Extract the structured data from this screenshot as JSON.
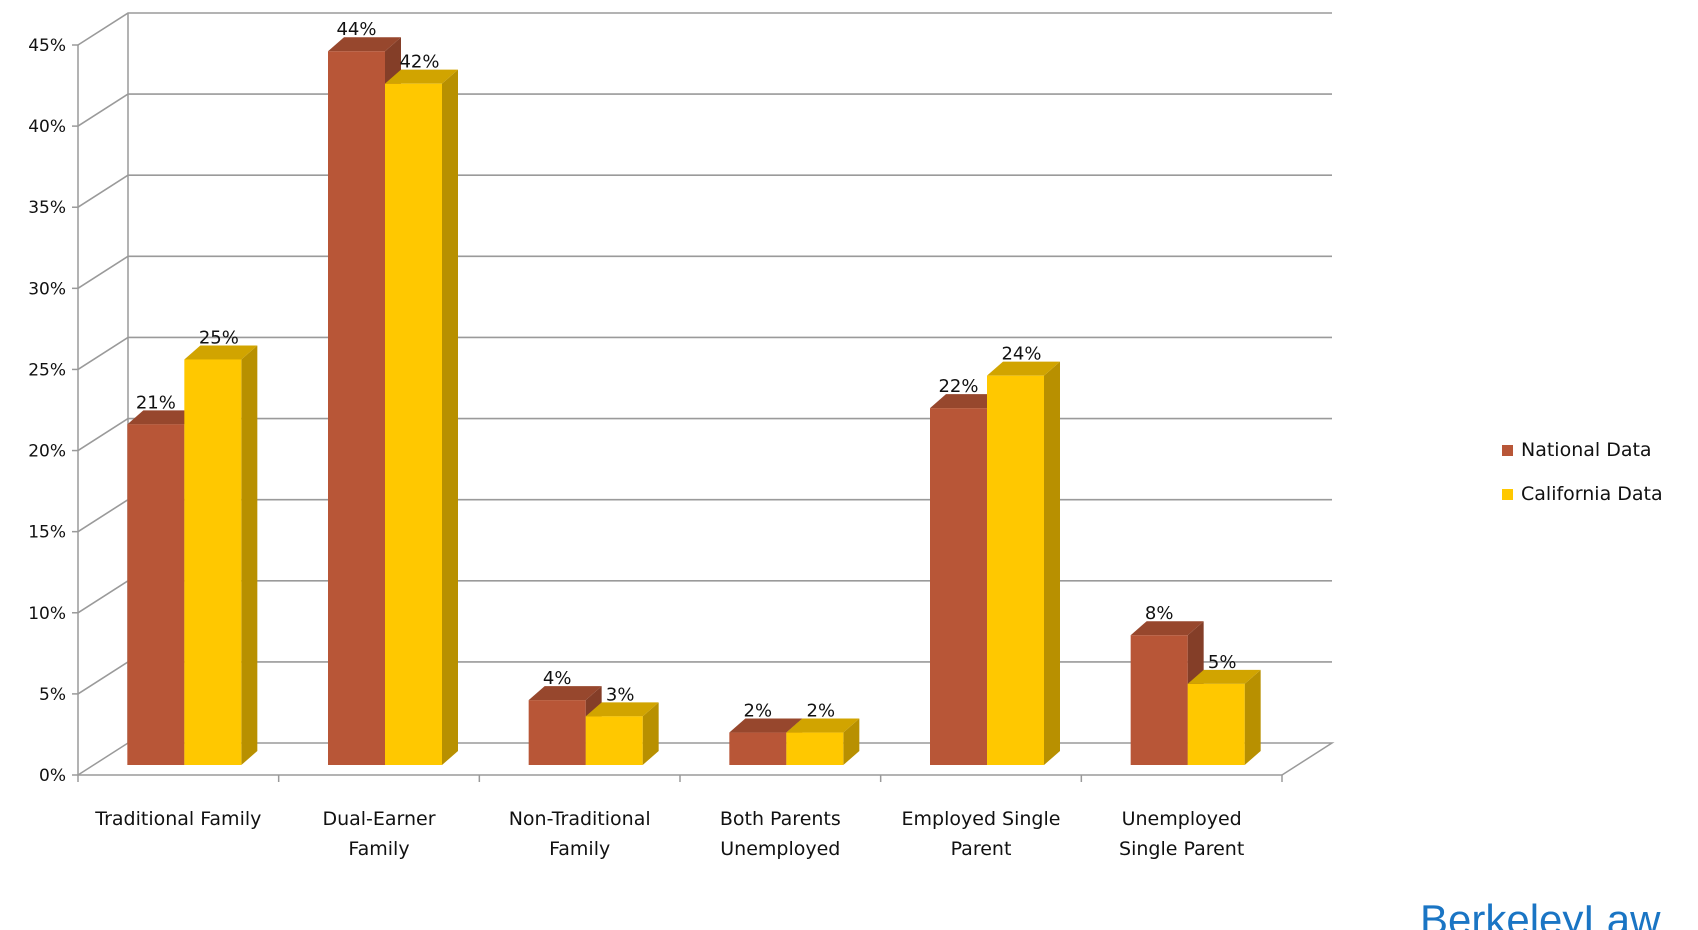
{
  "chart_data": {
    "type": "bar",
    "title": "",
    "xlabel": "",
    "ylabel": "",
    "ylim": [
      0,
      45
    ],
    "y_ticks": [
      "0%",
      "5%",
      "10%",
      "15%",
      "20%",
      "25%",
      "30%",
      "35%",
      "40%",
      "45%"
    ],
    "categories": [
      [
        "Traditional Family"
      ],
      [
        "Dual-Earner",
        "Family"
      ],
      [
        "Non-Traditional",
        "Family"
      ],
      [
        "Both Parents",
        "Unemployed"
      ],
      [
        "Employed Single",
        "Parent"
      ],
      [
        "Unemployed",
        "Single Parent"
      ]
    ],
    "series": [
      {
        "name": "National Data",
        "values": [
          21,
          44,
          4,
          2,
          22,
          8
        ],
        "labels": [
          "21%",
          "44%",
          "4%",
          "2%",
          "22%",
          "8%"
        ],
        "color": "#b85637"
      },
      {
        "name": "California Data",
        "values": [
          25,
          42,
          3,
          2,
          24,
          5
        ],
        "labels": [
          "25%",
          "42%",
          "3%",
          "2%",
          "24%",
          "5%"
        ],
        "color": "#ffc800"
      }
    ],
    "grid": true,
    "legend_position": "right",
    "style": "3d-column"
  },
  "legend": {
    "items": [
      {
        "label": "National Data",
        "color": "#b85637"
      },
      {
        "label": "California Data",
        "color": "#ffc800"
      }
    ]
  },
  "brand": {
    "text": "BerkeleyLaw"
  }
}
